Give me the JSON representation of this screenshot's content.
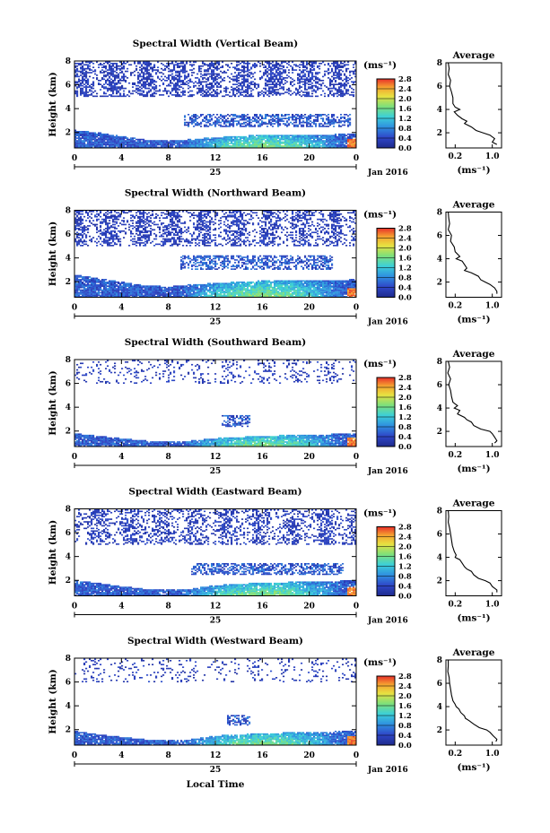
{
  "figure": {
    "bottom_xlabel": "Local Time",
    "colorbar_unit": "(ms⁻¹)",
    "avg_title": "Average",
    "avg_xunit": "(ms⁻¹)",
    "ylabel": "Height (km)",
    "date_day": "25",
    "date_month": "Jan 2016"
  },
  "chart_data": [
    {
      "type": "heatmap",
      "title": "Spectral Width (Vertical Beam)",
      "ylabel": "Height (km)",
      "x_ticks": [
        "0",
        "4",
        "8",
        "12",
        "16",
        "20",
        "0"
      ],
      "xlim": [
        0,
        24
      ],
      "y_ticks": [
        "2",
        "4",
        "6",
        "8"
      ],
      "ylim": [
        0.7,
        8.0
      ],
      "colorbar": {
        "ticks": [
          "0.0",
          "0.4",
          "0.8",
          "1.2",
          "1.6",
          "2.0",
          "2.4",
          "2.8"
        ],
        "range": [
          0.0,
          2.8
        ]
      },
      "boundary_layer": [
        [
          0,
          2.2
        ],
        [
          2,
          2.0
        ],
        [
          4,
          1.7
        ],
        [
          6,
          1.4
        ],
        [
          8,
          1.3
        ],
        [
          9.4,
          1.4
        ],
        [
          12,
          1.6
        ],
        [
          16,
          1.8
        ],
        [
          20,
          1.8
        ],
        [
          24,
          1.9
        ]
      ],
      "elevated_layer": {
        "x": [
          9.4,
          23.5
        ],
        "y": [
          2.5,
          3.6
        ]
      },
      "upper_cloud": {
        "y": [
          5.0,
          8.0
        ],
        "coverage": 0.55
      },
      "average_profile": {
        "xticks": [
          "0.2",
          "1.0"
        ],
        "xlim": [
          0.0,
          1.2
        ],
        "ylim": [
          0.7,
          8.0
        ],
        "yticks": [
          "2",
          "4",
          "6",
          "8"
        ],
        "height": [
          8.0,
          7.5,
          7.0,
          6.5,
          6.0,
          5.5,
          5.0,
          4.5,
          4.2,
          4.0,
          3.8,
          3.5,
          3.2,
          3.0,
          2.8,
          2.5,
          2.2,
          2.0,
          1.8,
          1.5,
          1.2,
          1.0
        ],
        "width": [
          0.05,
          0.07,
          0.05,
          0.1,
          0.08,
          0.12,
          0.15,
          0.15,
          0.2,
          0.3,
          0.18,
          0.25,
          0.35,
          0.45,
          0.4,
          0.55,
          0.65,
          0.8,
          0.95,
          1.05,
          1.0,
          1.1
        ]
      }
    },
    {
      "type": "heatmap",
      "title": "Spectral Width (Northward Beam)",
      "ylabel": "Height (km)",
      "x_ticks": [
        "0",
        "4",
        "8",
        "12",
        "16",
        "20",
        "0"
      ],
      "xlim": [
        0,
        24
      ],
      "y_ticks": [
        "2",
        "4",
        "6",
        "8"
      ],
      "ylim": [
        0.7,
        8.0
      ],
      "colorbar": {
        "ticks": [
          "0.0",
          "0.4",
          "0.8",
          "1.2",
          "1.6",
          "2.0",
          "2.4",
          "2.8"
        ],
        "range": [
          0.0,
          2.8
        ]
      },
      "boundary_layer": [
        [
          0,
          2.6
        ],
        [
          2,
          2.3
        ],
        [
          4,
          2.0
        ],
        [
          6,
          1.7
        ],
        [
          8,
          1.6
        ],
        [
          9.0,
          1.7
        ],
        [
          12,
          1.9
        ],
        [
          16,
          2.1
        ],
        [
          20,
          2.1
        ],
        [
          24,
          2.2
        ]
      ],
      "elevated_layer": {
        "x": [
          9.0,
          22.0
        ],
        "y": [
          3.0,
          4.2
        ]
      },
      "upper_cloud": {
        "y": [
          5.0,
          8.0
        ],
        "coverage": 0.5
      },
      "average_profile": {
        "xticks": [
          "0.2",
          "1.0"
        ],
        "xlim": [
          0.0,
          1.2
        ],
        "ylim": [
          0.7,
          8.0
        ],
        "yticks": [
          "2",
          "4",
          "6",
          "8"
        ],
        "height": [
          8.0,
          7.5,
          7.0,
          6.5,
          6.0,
          5.5,
          5.0,
          4.6,
          4.2,
          4.0,
          3.8,
          3.5,
          3.2,
          3.0,
          2.8,
          2.5,
          2.2,
          2.0,
          1.8,
          1.5,
          1.2,
          1.0
        ],
        "width": [
          0.05,
          0.06,
          0.08,
          0.05,
          0.12,
          0.1,
          0.18,
          0.2,
          0.3,
          0.22,
          0.35,
          0.4,
          0.45,
          0.4,
          0.55,
          0.7,
          0.75,
          0.85,
          0.95,
          1.05,
          1.1,
          1.1
        ]
      }
    },
    {
      "type": "heatmap",
      "title": "Spectral Width (Southward Beam)",
      "ylabel": "Height (km)",
      "x_ticks": [
        "0",
        "4",
        "8",
        "12",
        "16",
        "20",
        "0"
      ],
      "xlim": [
        0,
        24
      ],
      "y_ticks": [
        "2",
        "4",
        "6",
        "8"
      ],
      "ylim": [
        0.7,
        8.0
      ],
      "colorbar": {
        "ticks": [
          "0.0",
          "0.4",
          "0.8",
          "1.2",
          "1.6",
          "2.0",
          "2.4",
          "2.8"
        ],
        "range": [
          0.0,
          2.8
        ]
      },
      "boundary_layer": [
        [
          0,
          1.8
        ],
        [
          2,
          1.6
        ],
        [
          4,
          1.4
        ],
        [
          6,
          1.2
        ],
        [
          8,
          1.1
        ],
        [
          10,
          1.2
        ],
        [
          12,
          1.4
        ],
        [
          16,
          1.6
        ],
        [
          20,
          1.7
        ],
        [
          24,
          1.8
        ]
      ],
      "elevated_layer": {
        "x": [
          12.5,
          15.0
        ],
        "y": [
          2.3,
          3.3
        ]
      },
      "upper_cloud": {
        "y": [
          6.0,
          8.0
        ],
        "coverage": 0.18
      },
      "average_profile": {
        "xticks": [
          "0.2",
          "1.0"
        ],
        "xlim": [
          0.0,
          1.2
        ],
        "ylim": [
          0.7,
          8.0
        ],
        "yticks": [
          "2",
          "4",
          "6",
          "8"
        ],
        "height": [
          8.0,
          7.5,
          7.0,
          6.5,
          6.0,
          5.5,
          5.0,
          4.5,
          4.2,
          4.0,
          3.8,
          3.5,
          3.2,
          3.0,
          2.8,
          2.5,
          2.2,
          2.0,
          1.8,
          1.5,
          1.2,
          1.0
        ],
        "width": [
          0.05,
          0.08,
          0.04,
          0.1,
          0.06,
          0.1,
          0.12,
          0.15,
          0.25,
          0.18,
          0.3,
          0.25,
          0.4,
          0.45,
          0.55,
          0.6,
          0.75,
          0.95,
          1.0,
          1.05,
          1.1,
          1.05
        ]
      }
    },
    {
      "type": "heatmap",
      "title": "Spectral Width (Eastward Beam)",
      "ylabel": "Height (km)",
      "x_ticks": [
        "0",
        "4",
        "8",
        "12",
        "16",
        "20",
        "0"
      ],
      "xlim": [
        0,
        24
      ],
      "y_ticks": [
        "2",
        "4",
        "6",
        "8"
      ],
      "ylim": [
        0.7,
        8.0
      ],
      "colorbar": {
        "ticks": [
          "0.0",
          "0.4",
          "0.8",
          "1.2",
          "1.6",
          "2.0",
          "2.4",
          "2.8"
        ],
        "range": [
          0.0,
          2.8
        ]
      },
      "boundary_layer": [
        [
          0,
          2.0
        ],
        [
          2,
          1.8
        ],
        [
          4,
          1.5
        ],
        [
          6,
          1.3
        ],
        [
          8,
          1.2
        ],
        [
          10,
          1.3
        ],
        [
          12,
          1.6
        ],
        [
          16,
          1.8
        ],
        [
          20,
          1.9
        ],
        [
          24,
          2.0
        ]
      ],
      "elevated_layer": {
        "x": [
          10.0,
          23.0
        ],
        "y": [
          2.5,
          3.5
        ]
      },
      "upper_cloud": {
        "y": [
          5.0,
          8.0
        ],
        "coverage": 0.45
      },
      "average_profile": {
        "xticks": [
          "0.2",
          "1.0"
        ],
        "xlim": [
          0.0,
          1.2
        ],
        "ylim": [
          0.7,
          8.0
        ],
        "yticks": [
          "2",
          "4",
          "6",
          "8"
        ],
        "height": [
          8.0,
          7.5,
          7.0,
          6.5,
          6.0,
          5.5,
          5.0,
          4.5,
          4.2,
          4.0,
          3.8,
          3.5,
          3.2,
          3.0,
          2.8,
          2.5,
          2.2,
          2.0,
          1.8,
          1.5,
          1.2,
          1.0
        ],
        "width": [
          0.05,
          0.06,
          0.05,
          0.08,
          0.1,
          0.12,
          0.14,
          0.18,
          0.22,
          0.2,
          0.3,
          0.35,
          0.4,
          0.45,
          0.55,
          0.6,
          0.7,
          0.85,
          0.95,
          1.0,
          1.1,
          1.1
        ]
      }
    },
    {
      "type": "heatmap",
      "title": "Spectral Width (Westward Beam)",
      "ylabel": "Height (km)",
      "x_ticks": [
        "0",
        "4",
        "8",
        "12",
        "16",
        "20",
        "0"
      ],
      "xlim": [
        0,
        24
      ],
      "y_ticks": [
        "2",
        "4",
        "6",
        "8"
      ],
      "ylim": [
        0.7,
        8.0
      ],
      "colorbar": {
        "ticks": [
          "0.0",
          "0.4",
          "0.8",
          "1.2",
          "1.6",
          "2.0",
          "2.4",
          "2.8"
        ],
        "range": [
          0.0,
          2.8
        ]
      },
      "boundary_layer": [
        [
          0,
          1.9
        ],
        [
          2,
          1.6
        ],
        [
          4,
          1.4
        ],
        [
          6,
          1.2
        ],
        [
          8,
          1.1
        ],
        [
          10,
          1.2
        ],
        [
          12,
          1.5
        ],
        [
          16,
          1.7
        ],
        [
          20,
          1.8
        ],
        [
          24,
          1.9
        ]
      ],
      "elevated_layer": {
        "x": [
          13.0,
          15.0
        ],
        "y": [
          2.4,
          3.2
        ]
      },
      "upper_cloud": {
        "y": [
          6.0,
          8.0
        ],
        "coverage": 0.15
      },
      "average_profile": {
        "xticks": [
          "0.2",
          "1.0"
        ],
        "xlim": [
          0.0,
          1.2
        ],
        "ylim": [
          0.7,
          8.0
        ],
        "yticks": [
          "2",
          "4",
          "6",
          "8"
        ],
        "height": [
          8.0,
          7.5,
          7.0,
          6.5,
          6.0,
          5.5,
          5.0,
          4.5,
          4.2,
          4.0,
          3.8,
          3.5,
          3.2,
          3.0,
          2.8,
          2.5,
          2.2,
          2.0,
          1.8,
          1.5,
          1.2,
          1.0
        ],
        "width": [
          0.05,
          0.05,
          0.04,
          0.07,
          0.08,
          0.1,
          0.12,
          0.15,
          0.2,
          0.22,
          0.28,
          0.32,
          0.4,
          0.42,
          0.5,
          0.6,
          0.72,
          0.88,
          0.95,
          1.02,
          1.1,
          1.08
        ]
      }
    }
  ]
}
